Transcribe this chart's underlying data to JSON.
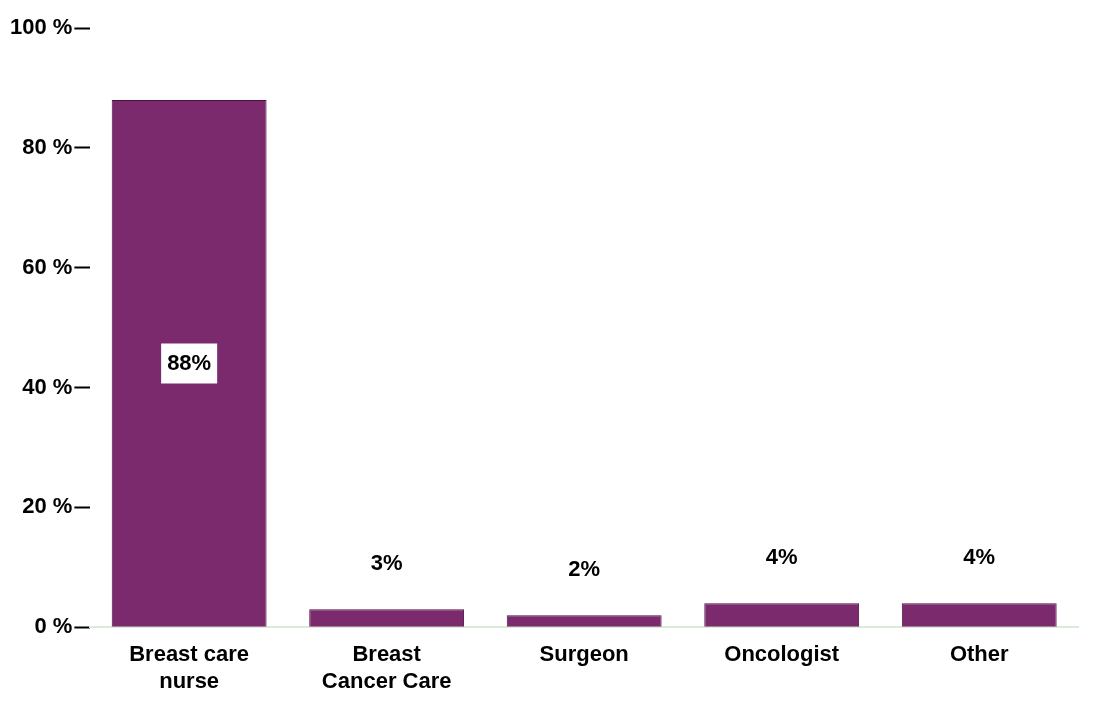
{
  "chart_data": {
    "type": "bar",
    "categories": [
      "Breast care nurse",
      "Breast Cancer Care",
      "Surgeon",
      "Oncologist",
      "Other"
    ],
    "values": [
      88,
      3,
      2,
      4,
      4
    ],
    "color": "#7b2a6e",
    "ylim": [
      0,
      100
    ],
    "yticks": [
      {
        "value": 0,
        "label": "0 %"
      },
      {
        "value": 20,
        "label": "20 %"
      },
      {
        "value": 40,
        "label": "40 %"
      },
      {
        "value": 60,
        "label": "60 %"
      },
      {
        "value": 80,
        "label": "80 %"
      },
      {
        "value": 100,
        "label": "100 %"
      }
    ],
    "grid": false,
    "legend": false,
    "value_labels": [
      "88%",
      "3%",
      "2%",
      "4%",
      "4%"
    ]
  }
}
